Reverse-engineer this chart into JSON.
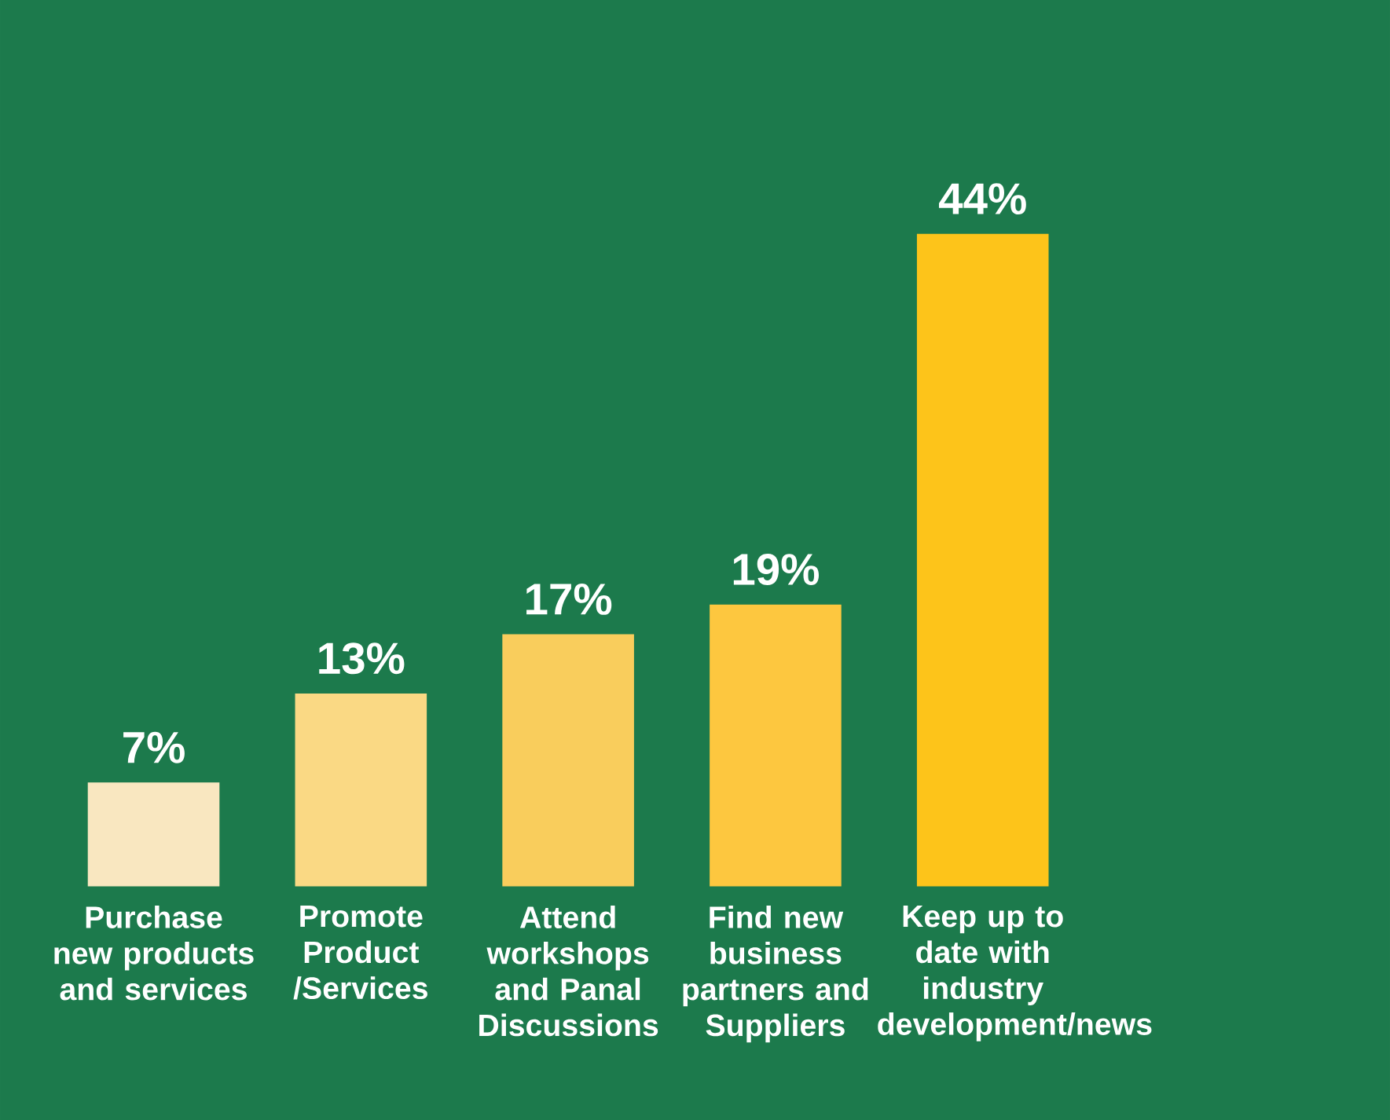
{
  "chart_data": {
    "type": "bar",
    "categories": [
      "Purchase new products and services",
      "Promote Product /Services",
      "Attend workshops and Panal Discussions",
      "Find new business partners and Suppliers",
      "Keep up to date with industry development/news"
    ],
    "values": [
      7,
      13,
      17,
      19,
      44
    ],
    "colors": [
      "#f9e7c0",
      "#fad984",
      "#f9cd5c",
      "#fdc73f",
      "#fdc41a"
    ],
    "value_labels": [
      "7%",
      "13%",
      "17%",
      "19%",
      "44%"
    ]
  }
}
